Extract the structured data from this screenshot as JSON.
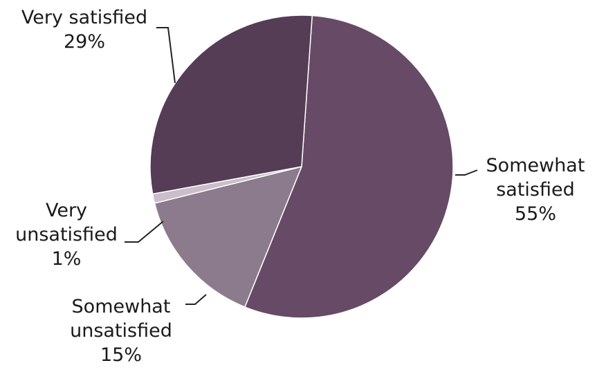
{
  "chart_data": {
    "type": "pie",
    "slices": [
      {
        "label_lines": [
          "Somewhat",
          "satisfied"
        ],
        "pct_label": "55%",
        "value": 55,
        "color": "#664a66"
      },
      {
        "label_lines": [
          "Somewhat",
          "unsatisfied"
        ],
        "pct_label": "15%",
        "value": 15,
        "color": "#8c7b8c"
      },
      {
        "label_lines": [
          "Very",
          "unsatisfied"
        ],
        "pct_label": "1%",
        "value": 1,
        "color": "#c9bec9"
      },
      {
        "label_lines": [
          "Very satisfied"
        ],
        "pct_label": "29%",
        "value": 29,
        "color": "#553d55"
      }
    ]
  }
}
